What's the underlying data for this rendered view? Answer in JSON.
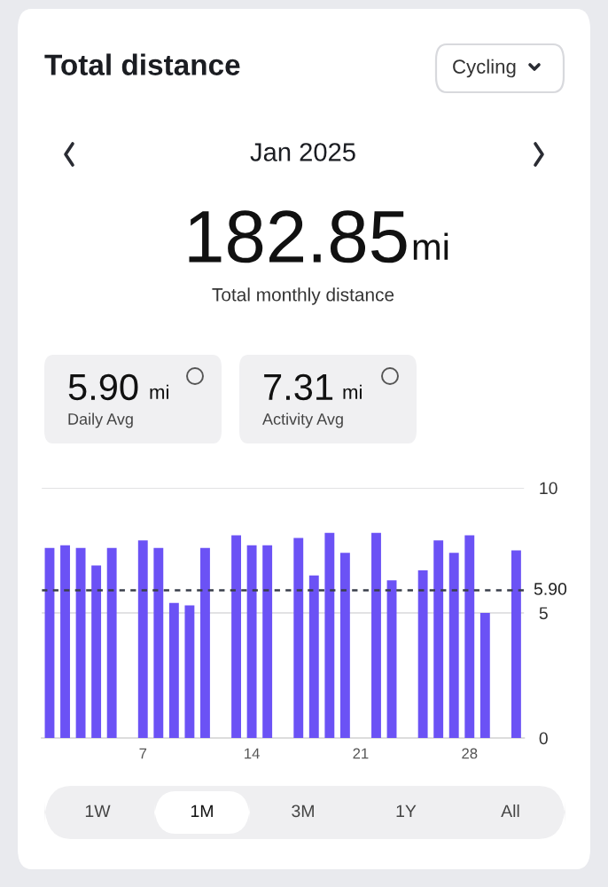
{
  "chart_data": {
    "type": "bar",
    "title": "Total distance",
    "subtitle": "Jan 2025",
    "x": [
      1,
      2,
      3,
      4,
      5,
      6,
      7,
      8,
      9,
      10,
      11,
      12,
      13,
      14,
      15,
      16,
      17,
      18,
      19,
      20,
      21,
      22,
      23,
      24,
      25,
      26,
      27,
      28,
      29,
      30,
      31
    ],
    "series": [
      {
        "color": "#6b52f5",
        "values": [
          7.6,
          7.7,
          7.6,
          6.9,
          7.6,
          0,
          7.9,
          7.6,
          5.4,
          5.3,
          7.6,
          0,
          8.1,
          7.7,
          7.7,
          0,
          8.0,
          6.5,
          8.2,
          7.4,
          0,
          8.2,
          6.3,
          0,
          6.7,
          7.9,
          7.4,
          8.1,
          5.0,
          0,
          7.5
        ]
      }
    ],
    "xlim": [
      0.5,
      31.5
    ],
    "xticks": [
      7,
      14,
      21,
      28
    ],
    "ylim": [
      0,
      10
    ],
    "yticks": [
      0,
      5,
      10
    ],
    "grid": "y",
    "ref_lines": [
      {
        "axis": "y",
        "value": 5.9,
        "label": "5.90",
        "color": "#3a3f4b",
        "line_style": "dashed"
      }
    ],
    "annotations": [
      "Cycling",
      "182.85",
      "mi",
      "Total monthly distance",
      "5.90",
      "mi",
      "Daily Avg",
      "7.31",
      "mi",
      "Activity Avg",
      "1W",
      "1M",
      "3M",
      "1Y",
      "All"
    ]
  }
}
